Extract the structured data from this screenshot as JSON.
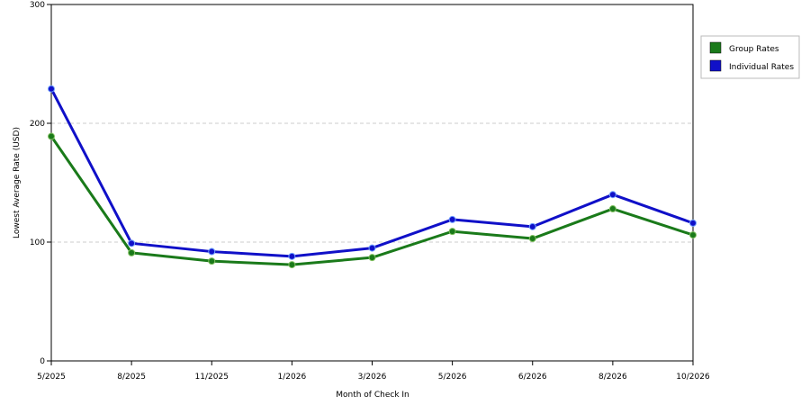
{
  "chart_data": {
    "type": "line",
    "title": "",
    "xlabel": "Month of Check In",
    "ylabel": "Lowest Average Rate (USD)",
    "categories": [
      "5/2025",
      "8/2025",
      "11/2025",
      "1/2026",
      "3/2026",
      "5/2026",
      "6/2026",
      "8/2026",
      "10/2026"
    ],
    "ylim": [
      0,
      300
    ],
    "yticks": [
      0,
      100,
      200,
      300
    ],
    "grid": "horizontal dashed",
    "legend_position": "right",
    "series": [
      {
        "name": "Group Rates",
        "color": "#1a7a1a",
        "values": [
          189,
          91,
          84,
          81,
          87,
          109,
          103,
          128,
          106
        ]
      },
      {
        "name": "Individual Rates",
        "color": "#1010c8",
        "values": [
          229,
          99,
          92,
          88,
          95,
          119,
          113,
          140,
          116
        ]
      }
    ]
  }
}
